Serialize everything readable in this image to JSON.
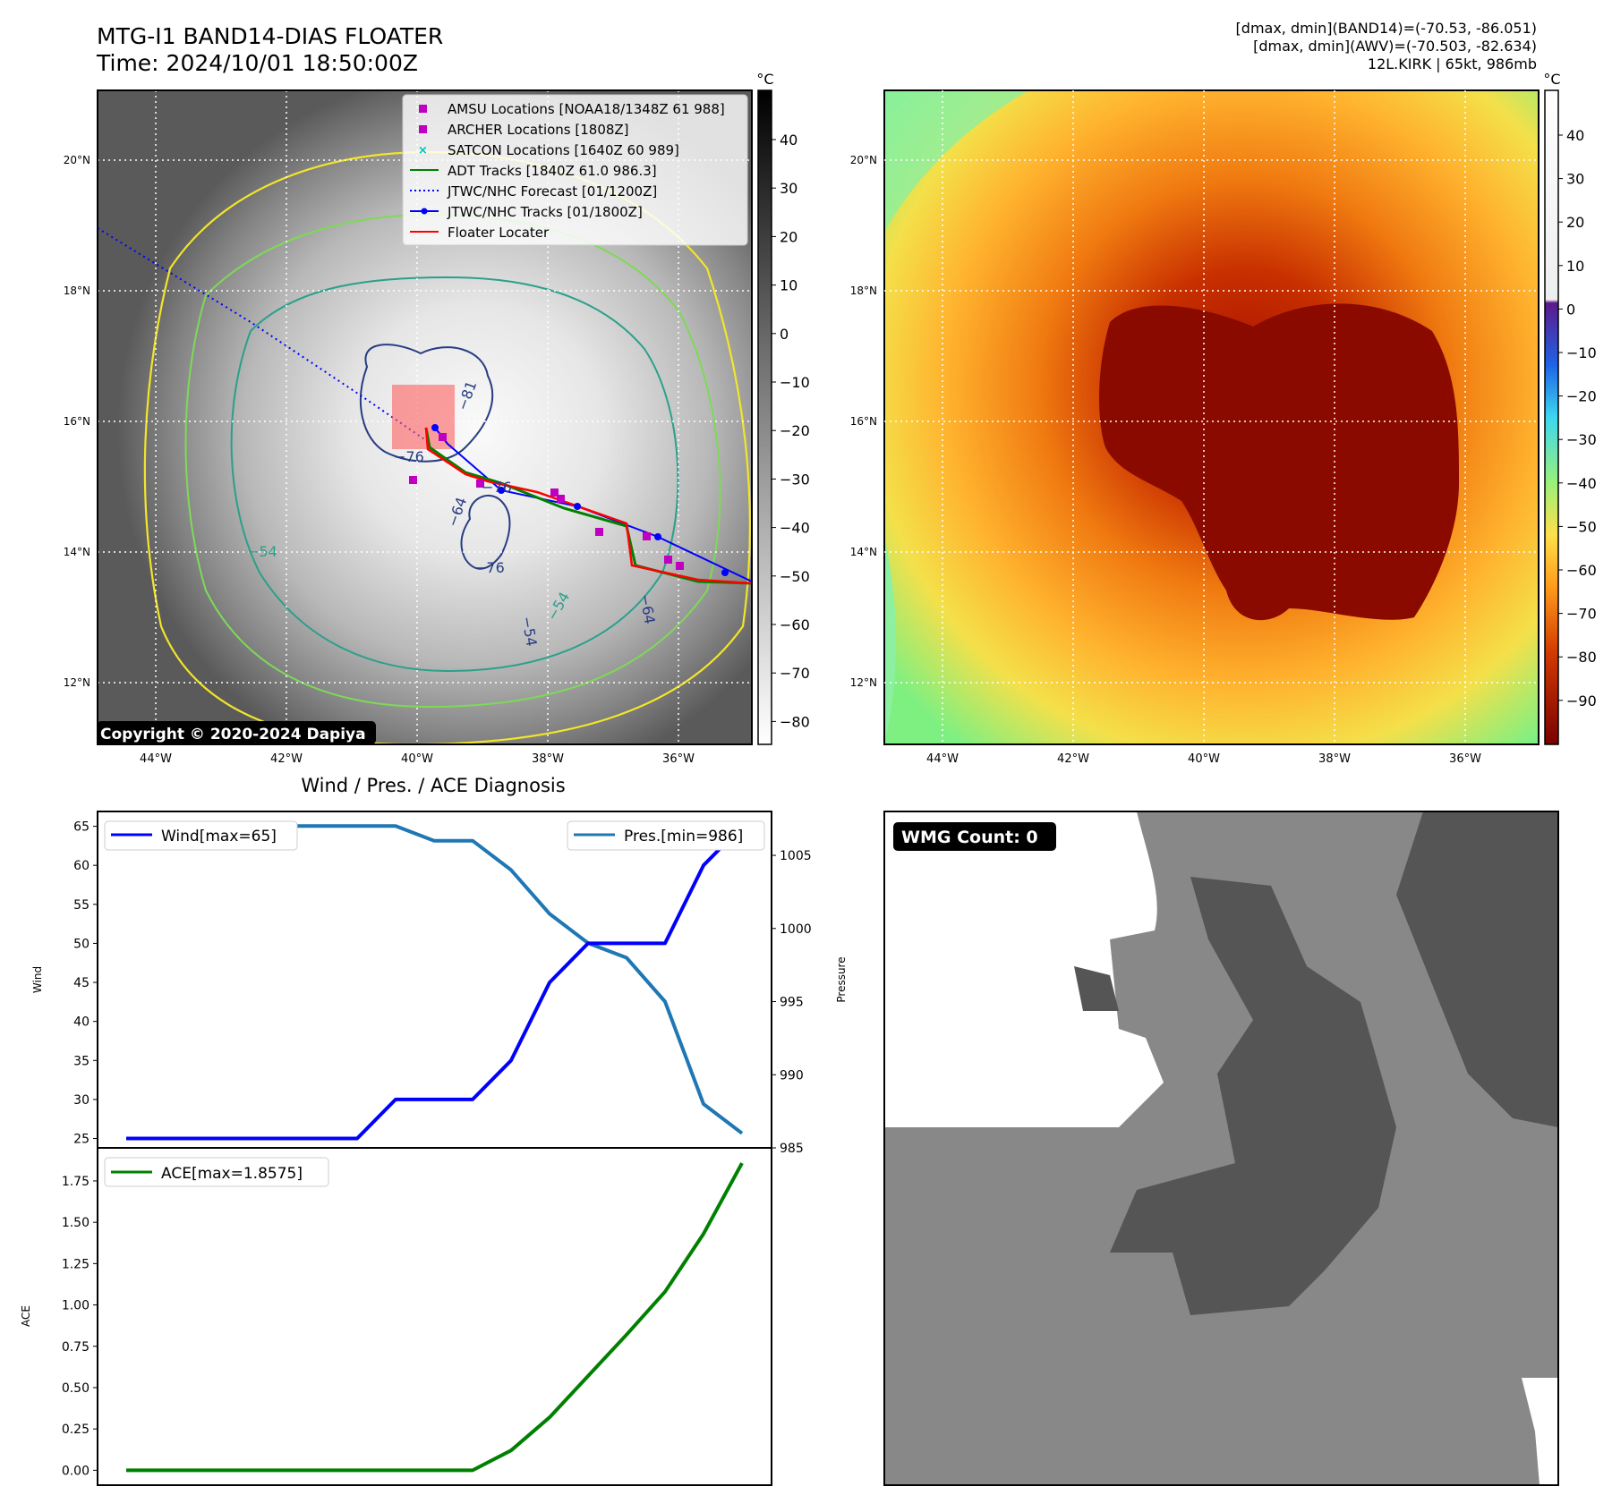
{
  "header": {
    "title_line1": "MTG-I1 BAND14-DIAS FLOATER",
    "title_line2": "Time: 2024/10/01 18:50:00Z",
    "info_line1": "[dmax, dmin](BAND14)=(-70.53, -86.051)",
    "info_line2": "[dmax, dmin](AWV)=(-70.503, -82.634)",
    "info_line3": "12L.KIRK | 65kt, 986mb"
  },
  "ir_panel": {
    "copyright": "Copyright © 2020-2024 Dapiya",
    "colorbar_unit": "°C",
    "colorbar_ticks": [
      "40",
      "30",
      "20",
      "10",
      "0",
      "−10",
      "−20",
      "−30",
      "−40",
      "−50",
      "−60",
      "−70",
      "−80"
    ],
    "contour_labels": [
      "−81",
      "−76",
      "−76",
      "−64",
      "−76",
      "−54",
      "−54",
      "−64",
      "−54"
    ],
    "legend": [
      {
        "label": "AMSU Locations [NOAA18/1348Z 61 988]",
        "symbol": "square",
        "color": "#c000c0"
      },
      {
        "label": "ARCHER Locations [1808Z]",
        "symbol": "square",
        "color": "#c000c0"
      },
      {
        "label": "SATCON Locations [1640Z 60 989]",
        "symbol": "x",
        "color": "#00c0c0"
      },
      {
        "label": "ADT Tracks [1840Z 61.0 986.3]",
        "symbol": "line",
        "color": "#008000"
      },
      {
        "label": "JTWC/NHC Forecast [01/1200Z]",
        "symbol": "dotted",
        "color": "#0000ff"
      },
      {
        "label": "JTWC/NHC Tracks [01/1800Z]",
        "symbol": "line-dot",
        "color": "#0000ff"
      },
      {
        "label": "Floater Locater",
        "symbol": "line",
        "color": "#ff0000"
      }
    ]
  },
  "wv_panel": {
    "colorbar_unit": "°C",
    "colorbar_ticks": [
      "40",
      "30",
      "20",
      "10",
      "0",
      "−10",
      "−20",
      "−30",
      "−40",
      "−50",
      "−60",
      "−70",
      "−80",
      "−90"
    ]
  },
  "map_axes": {
    "lat_labels": [
      "20°N",
      "18°N",
      "16°N",
      "14°N",
      "12°N"
    ],
    "lon_labels": [
      "44°W",
      "42°W",
      "40°W",
      "38°W",
      "36°W"
    ]
  },
  "diag": {
    "title": "Wind / Pres. / ACE Diagnosis",
    "wind_ylabel": "Wind",
    "pres_ylabel": "Pressure",
    "ace_ylabel": "ACE",
    "wind_legend": "Wind[max=65]",
    "pres_legend": "Pres.[min=986]",
    "ace_legend": "ACE[max=1.8575]",
    "wind_ticks": [
      "65",
      "60",
      "55",
      "50",
      "45",
      "40",
      "35",
      "30",
      "25"
    ],
    "pres_ticks": [
      "1005",
      "1000",
      "995",
      "990",
      "985"
    ],
    "ace_ticks": [
      "1.75",
      "1.50",
      "1.25",
      "1.00",
      "0.75",
      "0.50",
      "0.25",
      "0.00"
    ]
  },
  "wmg_panel": {
    "count_label": "WMG Count: 0"
  },
  "chart_data": [
    {
      "type": "line",
      "title": "Wind / Pres. / ACE Diagnosis",
      "x": [
        0,
        1,
        2,
        3,
        4,
        5,
        6,
        7,
        8,
        9,
        10,
        11,
        12,
        13,
        14,
        15,
        16
      ],
      "series": [
        {
          "name": "Wind[max=65]",
          "color": "#0000ff",
          "axis": "left",
          "values": [
            25,
            25,
            25,
            25,
            25,
            25,
            25,
            30,
            30,
            30,
            35,
            45,
            50,
            50,
            50,
            60,
            65
          ]
        },
        {
          "name": "Pres.[min=986]",
          "color": "#1f77b4",
          "axis": "right",
          "values": [
            1007,
            1007,
            1007,
            1007,
            1007,
            1007,
            1007,
            1007,
            1006,
            1006,
            1004,
            1001,
            999,
            998,
            995,
            988,
            986
          ]
        }
      ],
      "ylabel": "Wind",
      "ylim": [
        23.8,
        66.9
      ],
      "y2label": "Pressure",
      "y2lim": [
        985,
        1008
      ]
    },
    {
      "type": "line",
      "x": [
        0,
        1,
        2,
        3,
        4,
        5,
        6,
        7,
        8,
        9,
        10,
        11,
        12,
        13,
        14,
        15,
        16
      ],
      "series": [
        {
          "name": "ACE[max=1.8575]",
          "color": "#008000",
          "values": [
            0,
            0,
            0,
            0,
            0,
            0,
            0,
            0,
            0,
            0,
            0.12,
            0.32,
            0.57,
            0.82,
            1.08,
            1.43,
            1.8575
          ]
        }
      ],
      "ylabel": "ACE",
      "ylim": [
        -0.09,
        1.95
      ]
    }
  ]
}
